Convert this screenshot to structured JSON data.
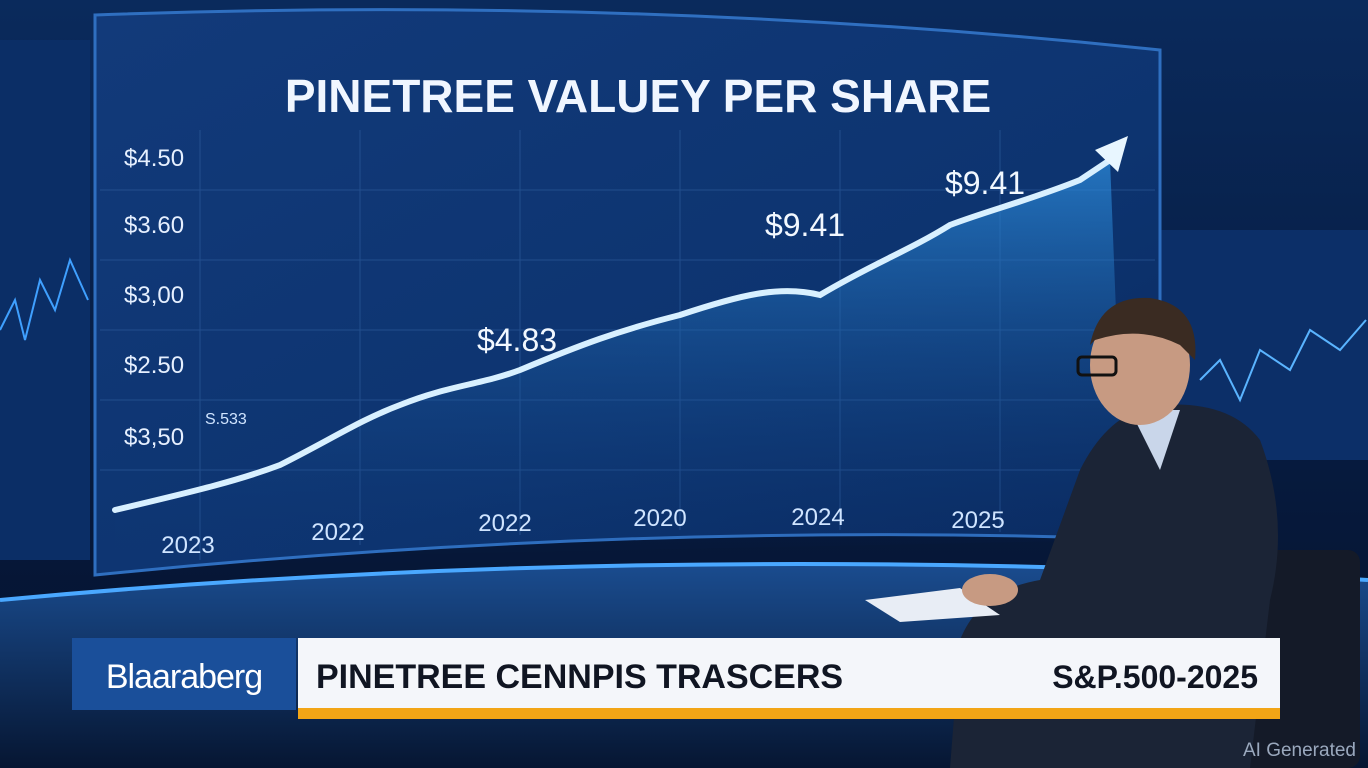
{
  "screen": {
    "title": "PINETREE VALUEY PER SHARE",
    "y_labels": [
      "$4.50",
      "$3.60",
      "$3,00",
      "$2.50",
      "$3,50"
    ],
    "small_label": "S.533",
    "x_labels": [
      "2023",
      "2022",
      "2022",
      "2020",
      "2024",
      "2025"
    ],
    "annotations": [
      "$4.83",
      "$9.41",
      "$9.41"
    ]
  },
  "lower_third": {
    "logo": "Blaaraberg",
    "headline": "PINETREE CENNPIS TRASCERS",
    "ticker": "S&P.500-2025"
  },
  "watermark": "AI Generated"
}
